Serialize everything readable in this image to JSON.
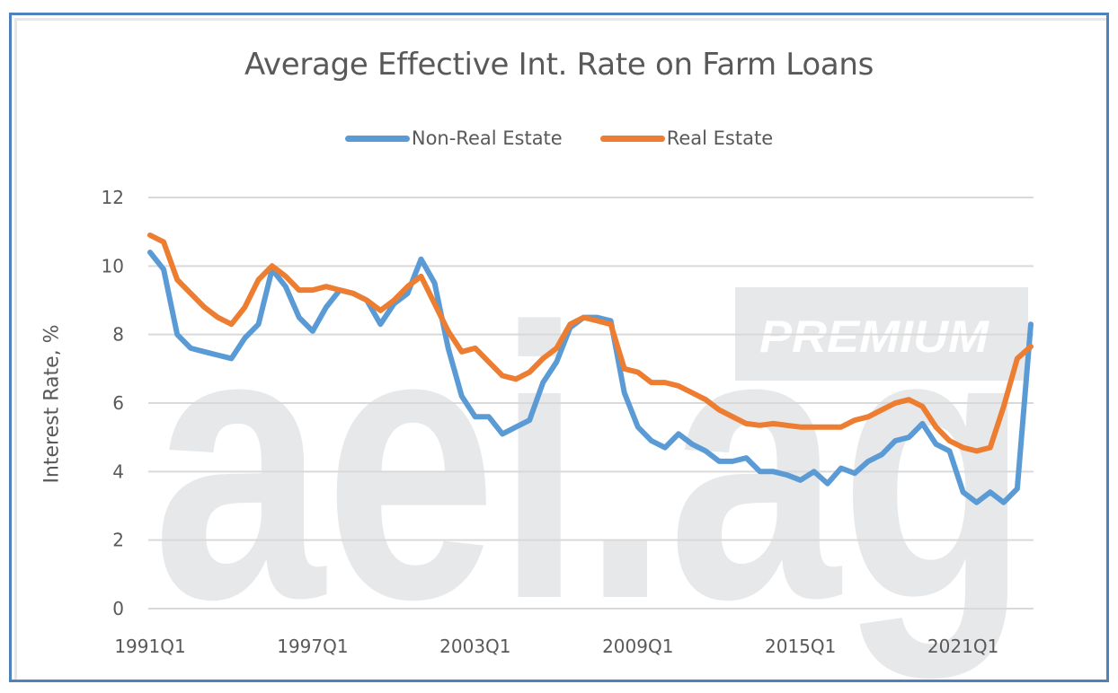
{
  "chart_data": {
    "type": "line",
    "title": "Average Effective Int. Rate on Farm Loans",
    "xlabel": "",
    "ylabel": "Interest Rate, %",
    "ylim": [
      0,
      12
    ],
    "yticks": [
      0,
      2,
      4,
      6,
      8,
      10,
      12
    ],
    "xtick_labels": [
      "1991Q1",
      "1997Q1",
      "2003Q1",
      "2009Q1",
      "2015Q1",
      "2021Q1"
    ],
    "grid": "horizontal",
    "legend_position": "top",
    "x_start": "1991Q1",
    "x_end": "2023Q3",
    "x_step": "2 quarters",
    "x": [
      "1991Q1",
      "1991Q3",
      "1992Q1",
      "1992Q3",
      "1993Q1",
      "1993Q3",
      "1994Q1",
      "1994Q3",
      "1995Q1",
      "1995Q3",
      "1996Q1",
      "1996Q3",
      "1997Q1",
      "1997Q3",
      "1998Q1",
      "1998Q3",
      "1999Q1",
      "1999Q3",
      "2000Q1",
      "2000Q3",
      "2001Q1",
      "2001Q3",
      "2002Q1",
      "2002Q3",
      "2003Q1",
      "2003Q3",
      "2004Q1",
      "2004Q3",
      "2005Q1",
      "2005Q3",
      "2006Q1",
      "2006Q3",
      "2007Q1",
      "2007Q3",
      "2008Q1",
      "2008Q3",
      "2009Q1",
      "2009Q3",
      "2010Q1",
      "2010Q3",
      "2011Q1",
      "2011Q3",
      "2012Q1",
      "2012Q3",
      "2013Q1",
      "2013Q3",
      "2014Q1",
      "2014Q3",
      "2015Q1",
      "2015Q3",
      "2016Q1",
      "2016Q3",
      "2017Q1",
      "2017Q3",
      "2018Q1",
      "2018Q3",
      "2019Q1",
      "2019Q3",
      "2020Q1",
      "2020Q3",
      "2021Q1",
      "2021Q3",
      "2022Q1",
      "2022Q3",
      "2023Q1",
      "2023Q3"
    ],
    "series": [
      {
        "name": "Non-Real Estate",
        "color": "#5b9bd5",
        "values": [
          10.4,
          9.9,
          8.0,
          7.6,
          7.5,
          7.4,
          7.3,
          7.9,
          8.3,
          9.9,
          9.4,
          8.5,
          8.1,
          8.8,
          9.3,
          9.2,
          9.0,
          8.3,
          8.9,
          9.2,
          10.2,
          9.5,
          7.6,
          6.2,
          5.6,
          5.6,
          5.1,
          5.3,
          5.5,
          6.6,
          7.2,
          8.2,
          8.5,
          8.5,
          8.4,
          6.3,
          5.3,
          4.9,
          4.7,
          5.1,
          4.8,
          4.6,
          4.3,
          4.3,
          4.4,
          4.0,
          4.0,
          3.9,
          3.75,
          4.0,
          3.65,
          4.1,
          3.95,
          4.3,
          4.5,
          4.9,
          5.0,
          5.4,
          4.8,
          4.6,
          3.4,
          3.1,
          3.4,
          3.1,
          3.5,
          8.3
        ]
      },
      {
        "name": "Real Estate",
        "color": "#ed7d31",
        "values": [
          10.9,
          10.7,
          9.6,
          9.2,
          8.8,
          8.5,
          8.3,
          8.8,
          9.6,
          10.0,
          9.7,
          9.3,
          9.3,
          9.4,
          9.3,
          9.2,
          9.0,
          8.7,
          9.0,
          9.4,
          9.7,
          8.9,
          8.1,
          7.5,
          7.6,
          7.2,
          6.8,
          6.7,
          6.9,
          7.3,
          7.6,
          8.3,
          8.5,
          8.4,
          8.3,
          7.0,
          6.9,
          6.6,
          6.6,
          6.5,
          6.3,
          6.1,
          5.8,
          5.6,
          5.4,
          5.35,
          5.4,
          5.35,
          5.3,
          5.3,
          5.3,
          5.3,
          5.5,
          5.6,
          5.8,
          6.0,
          6.1,
          5.9,
          5.3,
          4.9,
          4.7,
          4.6,
          4.7,
          5.9,
          7.3,
          7.65
        ]
      }
    ]
  },
  "watermark": {
    "text": "aei.ag",
    "badge": "PREMIUM"
  }
}
